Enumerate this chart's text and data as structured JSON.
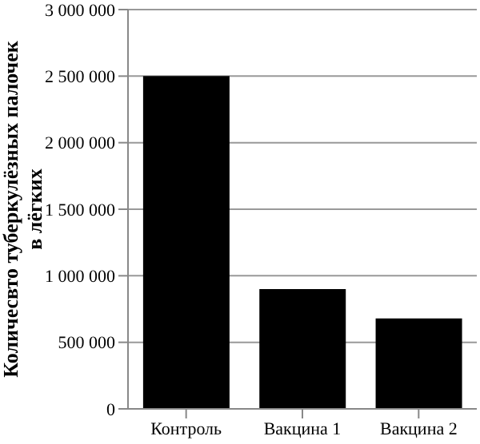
{
  "chart_data": {
    "type": "bar",
    "ylabel": "Количесвто туберкулёзных палочек\nв лёгких",
    "categories": [
      "Контроль",
      "Вакцина 1",
      "Вакцина 2"
    ],
    "values": [
      2500000,
      900000,
      680000
    ],
    "color": "#000000",
    "ylim": [
      0,
      3000000
    ],
    "yticks": [
      0,
      500000,
      1000000,
      1500000,
      2000000,
      2500000,
      3000000
    ],
    "grid": "y"
  }
}
